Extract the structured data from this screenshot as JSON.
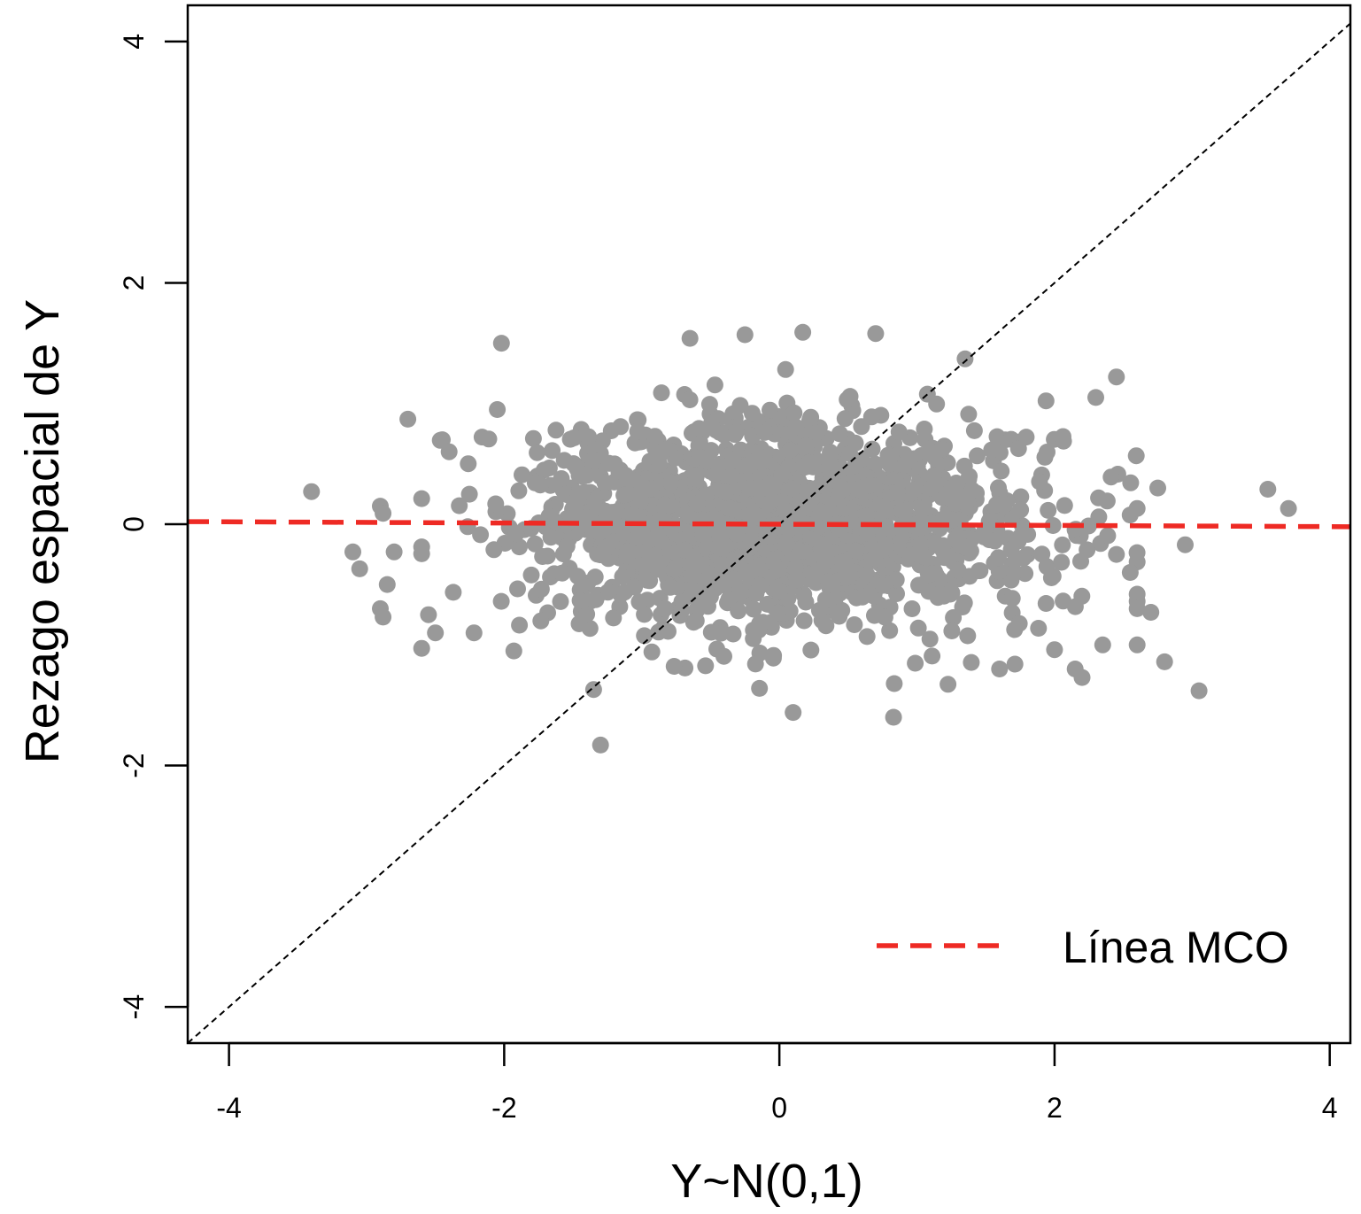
{
  "chart_data": {
    "type": "scatter",
    "title": "",
    "xlabel": "Y~N(0,1)",
    "ylabel": "Rezago espacial de Y",
    "xlim": [
      -4.3,
      4.15
    ],
    "ylim": [
      -4.3,
      4.3
    ],
    "x_ticks": [
      -4,
      -2,
      0,
      2,
      4
    ],
    "x_tick_labels": [
      "-4",
      "-2",
      "0",
      "2",
      "4"
    ],
    "y_ticks": [
      -4,
      -2,
      0,
      2,
      4
    ],
    "y_tick_labels": [
      "-4",
      "-2",
      "0",
      "2",
      "4"
    ],
    "grid": false,
    "point_color": "#999999",
    "reference_line": {
      "name": "identity",
      "slope": 1,
      "intercept": 0,
      "style": "dotted",
      "color": "#000000"
    },
    "ols_line": {
      "name": "Línea MCO",
      "slope": -0.005,
      "intercept": 0.0,
      "style": "dashed",
      "color": "#ee2a24"
    },
    "legend": {
      "position": "bottom-right",
      "entries": [
        {
          "label": "Línea MCO",
          "color": "#ee2a24",
          "style": "dashed"
        }
      ]
    },
    "cloud": {
      "n": 1600,
      "x_mean": 0.0,
      "x_sd": 0.95,
      "y_mean": 0.0,
      "y_sd": 0.42,
      "seed": 7
    },
    "notable_points": [
      {
        "x": -3.4,
        "y": 0.27
      },
      {
        "x": -3.1,
        "y": -0.23
      },
      {
        "x": -3.05,
        "y": -0.37
      },
      {
        "x": -2.9,
        "y": 0.15
      },
      {
        "x": -2.88,
        "y": 0.09
      },
      {
        "x": -2.9,
        "y": -0.7
      },
      {
        "x": -2.88,
        "y": -0.77
      },
      {
        "x": -2.85,
        "y": -0.5
      },
      {
        "x": -2.8,
        "y": -0.23
      },
      {
        "x": -2.7,
        "y": 0.87
      },
      {
        "x": -2.55,
        "y": -0.75
      },
      {
        "x": -2.5,
        "y": -0.9
      },
      {
        "x": -2.45,
        "y": 0.7
      },
      {
        "x": -2.4,
        "y": 0.6
      },
      {
        "x": -2.02,
        "y": 1.5
      },
      {
        "x": -2.05,
        "y": 0.95
      },
      {
        "x": -1.93,
        "y": -1.05
      },
      {
        "x": -1.3,
        "y": -1.83
      },
      {
        "x": -1.35,
        "y": -1.37
      },
      {
        "x": -0.65,
        "y": 1.54
      },
      {
        "x": -0.25,
        "y": 1.57
      },
      {
        "x": 0.17,
        "y": 1.59
      },
      {
        "x": 0.7,
        "y": 1.58
      },
      {
        "x": 0.1,
        "y": -1.56
      },
      {
        "x": 0.83,
        "y": -1.6
      },
      {
        "x": 1.35,
        "y": 1.37
      },
      {
        "x": 2.45,
        "y": 1.22
      },
      {
        "x": 2.3,
        "y": 1.05
      },
      {
        "x": 2.75,
        "y": 0.3
      },
      {
        "x": 3.55,
        "y": 0.29
      },
      {
        "x": 3.7,
        "y": 0.13
      },
      {
        "x": 2.95,
        "y": -0.17
      },
      {
        "x": 3.05,
        "y": -1.38
      },
      {
        "x": 2.8,
        "y": -1.14
      },
      {
        "x": 2.6,
        "y": -1.0
      },
      {
        "x": 2.7,
        "y": -0.73
      },
      {
        "x": 2.6,
        "y": -0.7
      },
      {
        "x": 2.35,
        "y": -1.0
      },
      {
        "x": 2.15,
        "y": -1.2
      },
      {
        "x": 2.2,
        "y": -1.27
      },
      {
        "x": 2.0,
        "y": -1.04
      },
      {
        "x": 1.6,
        "y": -1.2
      },
      {
        "x": 2.45,
        "y": -0.25
      },
      {
        "x": 2.55,
        "y": -0.4
      }
    ]
  }
}
